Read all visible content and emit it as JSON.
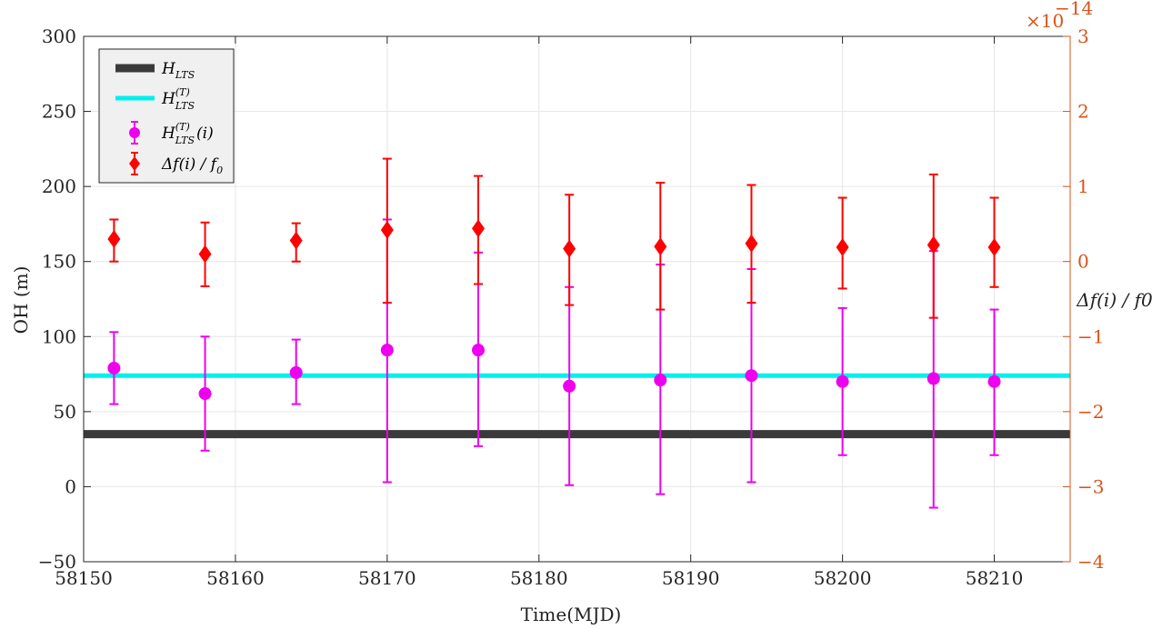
{
  "chart_data": {
    "type": "scatter",
    "title": "",
    "xlabel": "Time(MJD)",
    "ylabel": "OH (m)",
    "y2label": "Δf(i) / f0",
    "xlim": [
      58150,
      58215
    ],
    "ylim": [
      -50,
      300
    ],
    "y2lim": [
      -4,
      3
    ],
    "y2_multiplier": "×10",
    "y2_multiplier_exponent": "−14",
    "x_ticks": [
      "58150",
      "58160",
      "58170",
      "58180",
      "58190",
      "58200",
      "58210"
    ],
    "y_ticks": [
      "−50",
      "0",
      "50",
      "100",
      "150",
      "200",
      "250",
      "300"
    ],
    "y2_ticks": [
      "−4",
      "−3",
      "−2",
      "−1",
      "0",
      "1",
      "2",
      "3"
    ],
    "grid": true,
    "legend_position": "top-left",
    "colors": {
      "h_lts": "#3a3a3a",
      "h_lts_t": "#00f0f0",
      "h_lts_t_i": "#ee00ee",
      "delta_f": "#ff0000",
      "right_axis": "#d95319"
    },
    "legend": [
      {
        "id": "h_lts",
        "base": "H",
        "sub": "LTS",
        "sup": "",
        "tail": ""
      },
      {
        "id": "h_lts_t",
        "base": "H",
        "sub": "LTS",
        "sup": "(T)",
        "tail": ""
      },
      {
        "id": "h_lts_t_i",
        "base": "H",
        "sub": "LTS",
        "sup": "(T)",
        "tail": "(i)"
      },
      {
        "id": "delta_f",
        "base": "Δf(i) / f",
        "sub": "0",
        "sup": "",
        "tail": ""
      }
    ],
    "lines": [
      {
        "id": "h_lts",
        "y": 35
      },
      {
        "id": "h_lts_t",
        "y": 74
      }
    ],
    "series": [
      {
        "id": "h_lts_t_i",
        "axis": "left",
        "marker": "circle",
        "x": [
          58152,
          58158,
          58164,
          58170,
          58176,
          58182,
          58188,
          58194,
          58200,
          58206,
          58210
        ],
        "y": [
          79,
          62,
          76,
          91,
          91,
          67,
          71,
          74,
          70,
          72,
          70
        ],
        "low": [
          55,
          24,
          55,
          3,
          27,
          1,
          -5,
          3,
          21,
          -14,
          21
        ],
        "high": [
          103,
          100,
          98,
          178,
          156,
          133,
          148,
          145,
          119,
          157,
          118
        ]
      },
      {
        "id": "delta_f",
        "axis": "right",
        "marker": "diamond",
        "x": [
          58152,
          58158,
          58164,
          58170,
          58176,
          58182,
          58188,
          58194,
          58200,
          58206,
          58210
        ],
        "y": [
          0.3,
          0.1,
          0.28,
          0.42,
          0.44,
          0.17,
          0.2,
          0.24,
          0.19,
          0.22,
          0.19
        ],
        "low": [
          0.0,
          -0.33,
          0.0,
          -0.55,
          -0.3,
          -0.58,
          -0.64,
          -0.55,
          -0.36,
          -0.75,
          -0.34
        ],
        "high": [
          0.56,
          0.52,
          0.51,
          1.37,
          1.14,
          0.89,
          1.05,
          1.02,
          0.85,
          1.16,
          0.85
        ]
      }
    ]
  }
}
